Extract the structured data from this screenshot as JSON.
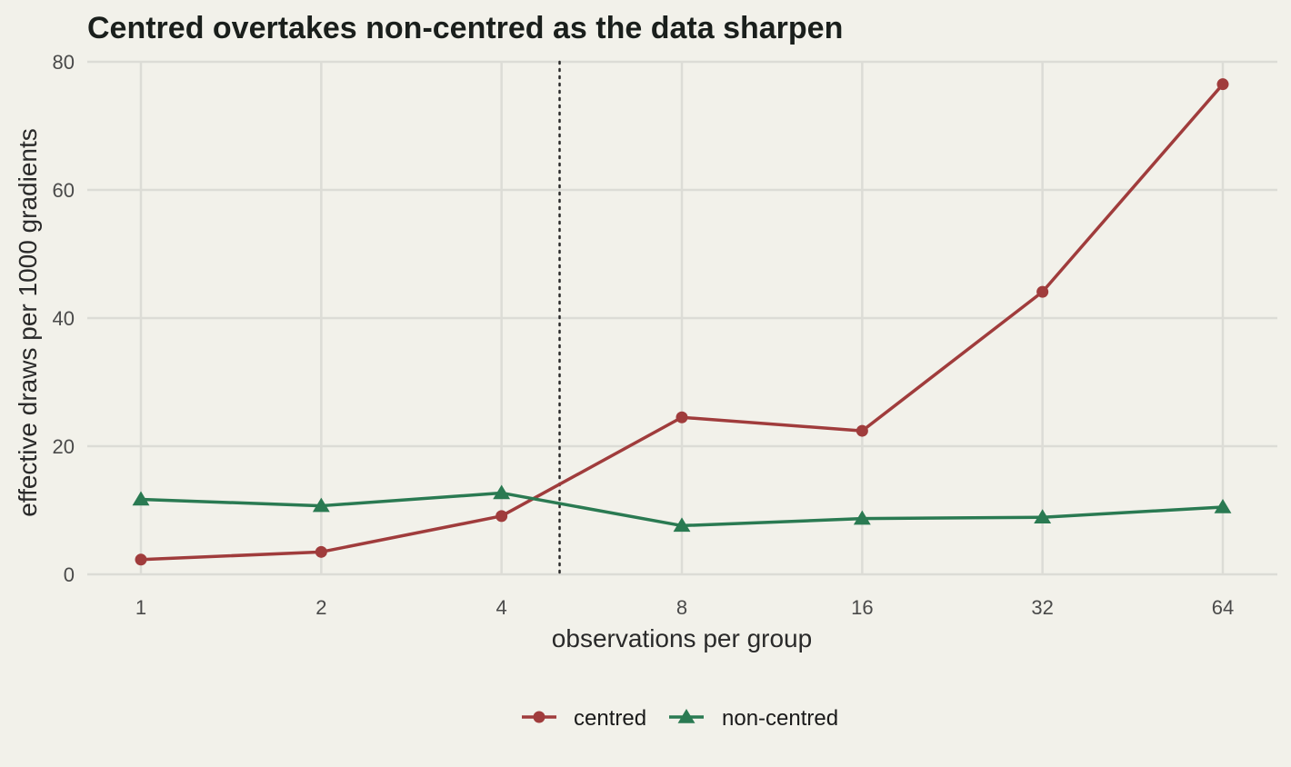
{
  "chart_data": {
    "type": "line",
    "title": "Centred overtakes non-centred as the data sharpen",
    "xlabel": "observations per group",
    "ylabel": "effective draws per 1000 gradients",
    "x_scale": "log2",
    "x": [
      1,
      2,
      4,
      8,
      16,
      32,
      64
    ],
    "x_tick_labels": [
      "1",
      "2",
      "4",
      "8",
      "16",
      "32",
      "64"
    ],
    "ylim": [
      0,
      80
    ],
    "y_ticks": [
      0,
      20,
      40,
      60,
      80
    ],
    "y_tick_labels": [
      "0",
      "20",
      "40",
      "60",
      "80"
    ],
    "grid": true,
    "legend_position": "bottom",
    "reference_line": {
      "x": 5.0,
      "style": "dotted"
    },
    "series": [
      {
        "name": "centred",
        "color": "#a03c3c",
        "marker": "circle",
        "values": [
          2.3,
          3.5,
          9.1,
          24.5,
          22.4,
          44.1,
          76.5
        ]
      },
      {
        "name": "non-centred",
        "color": "#2a7a52",
        "marker": "triangle",
        "values": [
          11.7,
          10.7,
          12.7,
          7.6,
          8.7,
          8.9,
          10.5
        ]
      }
    ]
  }
}
